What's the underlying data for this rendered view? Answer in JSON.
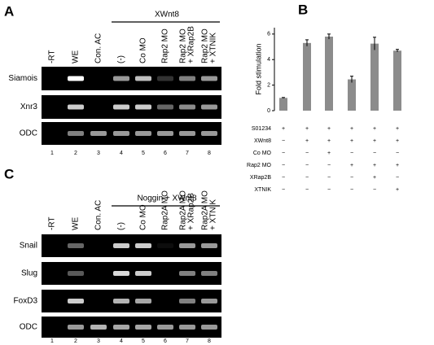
{
  "panel_a": {
    "label": "A",
    "header": "XWnt8",
    "columns": [
      [
        "-RT"
      ],
      [
        "WE"
      ],
      [
        "Con. AC"
      ],
      [
        "(-)"
      ],
      [
        "Co MO"
      ],
      [
        "Rap2 MO"
      ],
      [
        "Rap2 MO",
        "+ XRap2B"
      ],
      [
        "Rap2 MO",
        "+ XTNIK"
      ]
    ],
    "rows": [
      {
        "name": "Siamois",
        "band_intensity": [
          0,
          1,
          0,
          0.6,
          0.75,
          0.2,
          0.5,
          0.6
        ]
      },
      {
        "name": "Xnr3",
        "band_intensity": [
          0,
          0.8,
          0,
          0.8,
          0.8,
          0.4,
          0.55,
          0.6
        ]
      },
      {
        "name": "ODC",
        "band_intensity": [
          0,
          0.5,
          0.6,
          0.6,
          0.6,
          0.6,
          0.6,
          0.6
        ]
      }
    ],
    "lane_numbers": [
      "1",
      "2",
      "3",
      "4",
      "5",
      "6",
      "7",
      "8"
    ]
  },
  "chart_data": {
    "type": "bar",
    "label": "B",
    "y_label": "Fold stimulation",
    "series": [
      {
        "color": "#8c8c8c",
        "values": [
          1.0,
          5.3,
          5.8,
          2.45,
          5.25,
          4.7
        ],
        "errors": [
          0.03,
          0.25,
          0.2,
          0.25,
          0.5,
          0.1
        ]
      }
    ],
    "ylim": [
      0,
      6.5
    ],
    "yticks": [
      0,
      2,
      4,
      6
    ],
    "conditions": [
      {
        "name": "S01234",
        "cells": [
          "+",
          "+",
          "+",
          "+",
          "+",
          "+"
        ]
      },
      {
        "name": "XWnt8",
        "cells": [
          "−",
          "+",
          "+",
          "+",
          "+",
          "+"
        ]
      },
      {
        "name": "Co MO",
        "cells": [
          "−",
          "−",
          "+",
          "−",
          "−",
          "−"
        ]
      },
      {
        "name": "Rap2 MO",
        "cells": [
          "−",
          "−",
          "−",
          "+",
          "+",
          "+"
        ]
      },
      {
        "name": "XRap2B",
        "cells": [
          "−",
          "−",
          "−",
          "−",
          "+",
          "−"
        ]
      },
      {
        "name": "XTNIK",
        "cells": [
          "−",
          "−",
          "−",
          "−",
          "−",
          "+"
        ]
      }
    ]
  },
  "panel_c": {
    "label": "C",
    "header": "Noggin + XWnt8",
    "columns": [
      [
        "-RT"
      ],
      [
        "WE"
      ],
      [
        "Con. AC"
      ],
      [
        "(-)"
      ],
      [
        "Co MO"
      ],
      [
        "Rap2A MO"
      ],
      [
        "Rap2A MO",
        "+ XRap2B"
      ],
      [
        "Rap2A MO",
        "+ XTNIK"
      ]
    ],
    "rows": [
      {
        "name": "Snail",
        "band_intensity": [
          0,
          0.4,
          0,
          0.8,
          0.8,
          0.05,
          0.6,
          0.6
        ]
      },
      {
        "name": "Slug",
        "band_intensity": [
          0,
          0.35,
          0,
          0.85,
          0.8,
          0,
          0.5,
          0.5
        ]
      },
      {
        "name": "FoxD3",
        "band_intensity": [
          0,
          0.8,
          0,
          0.7,
          0.65,
          0,
          0.5,
          0.6
        ]
      },
      {
        "name": "ODC",
        "band_intensity": [
          0,
          0.6,
          0.7,
          0.65,
          0.65,
          0.6,
          0.6,
          0.6
        ]
      }
    ],
    "lane_numbers": [
      "1",
      "2",
      "3",
      "4",
      "5",
      "6",
      "7",
      "8"
    ]
  }
}
